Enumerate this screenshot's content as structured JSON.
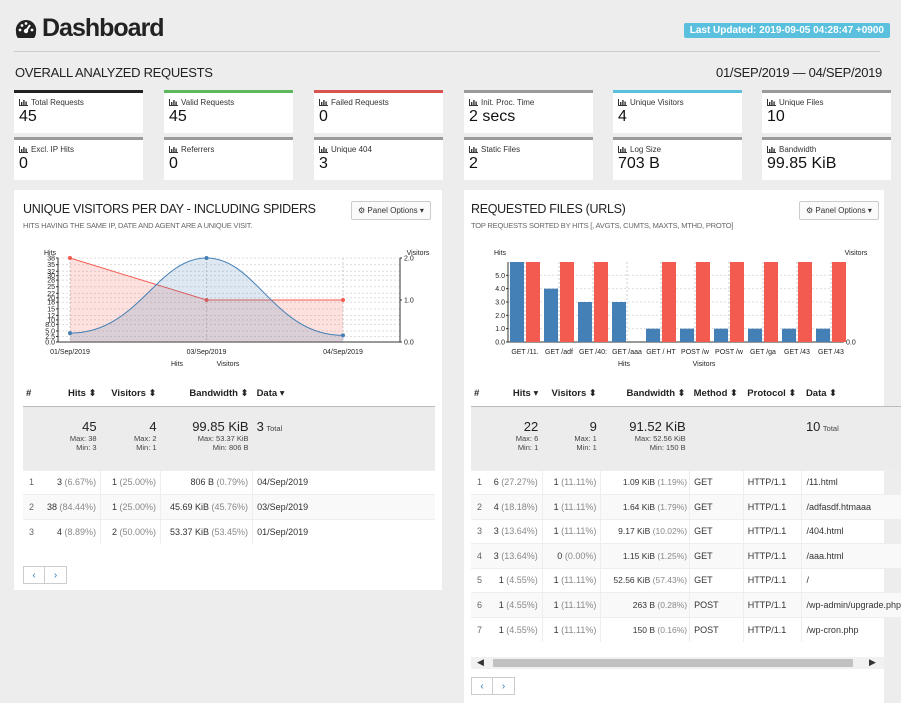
{
  "header": {
    "title": "Dashboard",
    "last_updated": "Last Updated: 2019-09-05 04:28:47 +0900"
  },
  "overview": {
    "title": "OVERALL ANALYZED REQUESTS",
    "date_range": "01/SEP/2019 — 04/SEP/2019",
    "cards": [
      {
        "label": "Total Requests",
        "value": "45",
        "color": "#222222"
      },
      {
        "label": "Valid Requests",
        "value": "45",
        "color": "#5cb85c"
      },
      {
        "label": "Failed Requests",
        "value": "0",
        "color": "#d9534f"
      },
      {
        "label": "Init. Proc. Time",
        "value": "2 secs",
        "color": "#9a9a9a"
      },
      {
        "label": "Unique Visitors",
        "value": "4",
        "color": "#5bc0de"
      },
      {
        "label": "Unique Files",
        "value": "10",
        "color": "#9a9a9a"
      },
      {
        "label": "Excl. IP Hits",
        "value": "0",
        "color": "#9a9a9a"
      },
      {
        "label": "Referrers",
        "value": "0",
        "color": "#9a9a9a"
      },
      {
        "label": "Unique 404",
        "value": "3",
        "color": "#9a9a9a"
      },
      {
        "label": "Static Files",
        "value": "2",
        "color": "#9a9a9a"
      },
      {
        "label": "Log Size",
        "value": "703 B",
        "color": "#9a9a9a"
      },
      {
        "label": "Bandwidth",
        "value": "99.85 KiB",
        "color": "#9a9a9a"
      }
    ]
  },
  "visitors": {
    "title": "UNIQUE VISITORS PER DAY - INCLUDING SPIDERS",
    "subtitle": "HITS HAVING THE SAME IP, DATE AND AGENT ARE A UNIQUE VISIT.",
    "panel_options": "Panel Options",
    "columns": [
      "#",
      "Hits",
      "Visitors",
      "Bandwidth",
      "Data"
    ],
    "summary": {
      "hits": "45",
      "hits_max": "Max: 38",
      "hits_min": "Min: 3",
      "visitors": "4",
      "visitors_max": "Max: 2",
      "visitors_min": "Min: 1",
      "bandwidth": "99.85 KiB",
      "bw_max": "Max: 53.37 KiB",
      "bw_min": "Min: 806 B",
      "data": "3",
      "data_total": "Total"
    },
    "rows": [
      {
        "n": "1",
        "hits": "3",
        "hits_pct": "(6.67%)",
        "vis": "1",
        "vis_pct": "(25.00%)",
        "bw": "806 B",
        "bw_pct": "(0.79%)",
        "data": "04/Sep/2019"
      },
      {
        "n": "2",
        "hits": "38",
        "hits_pct": "(84.44%)",
        "vis": "1",
        "vis_pct": "(25.00%)",
        "bw": "45.69 KiB",
        "bw_pct": "(45.76%)",
        "data": "03/Sep/2019"
      },
      {
        "n": "3",
        "hits": "4",
        "hits_pct": "(8.89%)",
        "vis": "2",
        "vis_pct": "(50.00%)",
        "bw": "53.37 KiB",
        "bw_pct": "(53.45%)",
        "data": "01/Sep/2019"
      }
    ]
  },
  "files": {
    "title": "REQUESTED FILES (URLS)",
    "subtitle": "TOP REQUESTS SORTED BY HITS [, AVGTS, CUMTS, MAXTS, MTHD, PROTO]",
    "panel_options": "Panel Options",
    "columns": [
      "#",
      "Hits",
      "Visitors",
      "Bandwidth",
      "Method",
      "Protocol",
      "Data"
    ],
    "summary": {
      "hits": "22",
      "hits_max": "Max: 6",
      "hits_min": "Min: 1",
      "visitors": "9",
      "visitors_max": "Max: 1",
      "visitors_min": "Min: 1",
      "bandwidth": "91.52 KiB",
      "bw_max": "Max: 52.56 KiB",
      "bw_min": "Min: 150 B",
      "data": "10",
      "data_total": "Total"
    },
    "rows": [
      {
        "n": "1",
        "hits": "6",
        "hits_pct": "(27.27%)",
        "vis": "1",
        "vis_pct": "(11.11%)",
        "bw": "1.09 KiB",
        "bw_pct": "(1.19%)",
        "method": "GET",
        "proto": "HTTP/1.1",
        "data": "/11.html"
      },
      {
        "n": "2",
        "hits": "4",
        "hits_pct": "(18.18%)",
        "vis": "1",
        "vis_pct": "(11.11%)",
        "bw": "1.64 KiB",
        "bw_pct": "(1.79%)",
        "method": "GET",
        "proto": "HTTP/1.1",
        "data": "/adfasdf.htmaaa"
      },
      {
        "n": "3",
        "hits": "3",
        "hits_pct": "(13.64%)",
        "vis": "1",
        "vis_pct": "(11.11%)",
        "bw": "9.17 KiB",
        "bw_pct": "(10.02%)",
        "method": "GET",
        "proto": "HTTP/1.1",
        "data": "/404.html"
      },
      {
        "n": "4",
        "hits": "3",
        "hits_pct": "(13.64%)",
        "vis": "0",
        "vis_pct": "(0.00%)",
        "bw": "1.15 KiB",
        "bw_pct": "(1.25%)",
        "method": "GET",
        "proto": "HTTP/1.1",
        "data": "/aaa.html"
      },
      {
        "n": "5",
        "hits": "1",
        "hits_pct": "(4.55%)",
        "vis": "1",
        "vis_pct": "(11.11%)",
        "bw": "52.56 KiB",
        "bw_pct": "(57.43%)",
        "method": "GET",
        "proto": "HTTP/1.1",
        "data": "/"
      },
      {
        "n": "6",
        "hits": "1",
        "hits_pct": "(4.55%)",
        "vis": "1",
        "vis_pct": "(11.11%)",
        "bw": "263 B",
        "bw_pct": "(0.28%)",
        "method": "POST",
        "proto": "HTTP/1.1",
        "data": "/wp-admin/upgrade.php"
      },
      {
        "n": "7",
        "hits": "1",
        "hits_pct": "(4.55%)",
        "vis": "1",
        "vis_pct": "(11.11%)",
        "bw": "150 B",
        "bw_pct": "(0.16%)",
        "method": "POST",
        "proto": "HTTP/1.1",
        "data": "/wp-cron.php"
      }
    ]
  },
  "chart_data": [
    {
      "type": "area",
      "ylabel": "Hits",
      "y2label": "Visitors",
      "xlabel": "Hits",
      "x2label": "Visitors",
      "categories": [
        "01/Sep/2019",
        "03/Sep/2019",
        "04/Sep/2019"
      ],
      "yticks": [
        "0.0",
        "2.5",
        "5.0",
        "8.0",
        "10",
        "12",
        "15",
        "18",
        "20",
        "22",
        "25",
        "28",
        "30",
        "32",
        "35",
        "38"
      ],
      "y2ticks": [
        "0.0",
        "1.0",
        "2.0"
      ],
      "ylim": [
        0,
        38
      ],
      "y2lim": [
        0,
        2
      ],
      "series": [
        {
          "name": "Hits",
          "values": [
            4,
            38,
            3
          ],
          "color": "#447fb5"
        },
        {
          "name": "Visitors",
          "values": [
            2,
            1,
            1
          ],
          "color": "#f45b50"
        }
      ]
    },
    {
      "type": "bar",
      "ylabel": "Hits",
      "y2label": "Visitors",
      "xlabel": "Hits",
      "x2label": "Visitors",
      "categories": [
        "GET /11.",
        "GET /adf",
        "GET /40:",
        "GET /aaa",
        "GET / HT",
        "POST /w",
        "POST /w",
        "GET /ga",
        "GET /43",
        "GET /43"
      ],
      "yticks": [
        "0.0",
        "1.0",
        "2.0",
        "3.0",
        "4.0",
        "5.0"
      ],
      "y2ticks": [
        "0.0"
      ],
      "ylim": [
        0,
        6
      ],
      "y2lim": [
        0,
        1
      ],
      "series": [
        {
          "name": "Hits",
          "values": [
            6,
            4,
            3,
            3,
            1,
            1,
            1,
            1,
            1,
            1
          ],
          "color": "#447fb5"
        },
        {
          "name": "Visitors",
          "values": [
            1,
            1,
            1,
            0,
            1,
            1,
            1,
            1,
            1,
            1
          ],
          "color": "#f45b50"
        }
      ]
    }
  ]
}
